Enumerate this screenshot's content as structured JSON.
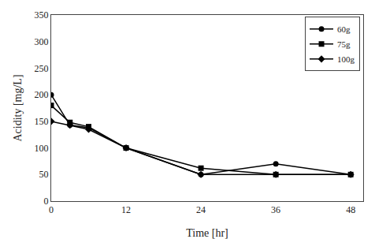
{
  "chart_data": {
    "type": "line",
    "x": [
      0,
      3,
      6,
      12,
      24,
      36,
      48
    ],
    "series": [
      {
        "name": "60g",
        "values": [
          200,
          143,
          138,
          100,
          50,
          70,
          50
        ],
        "marker": "circle",
        "color": "#000000"
      },
      {
        "name": "75g",
        "values": [
          180,
          148,
          140,
          100,
          62,
          50,
          50
        ],
        "marker": "square",
        "color": "#000000"
      },
      {
        "name": "100g",
        "values": [
          150,
          143,
          135,
          100,
          50,
          50,
          50
        ],
        "marker": "diamond",
        "color": "#000000"
      }
    ],
    "xlabel": "Time [hr]",
    "ylabel": "Acidity [mg/L]",
    "xlim": [
      0,
      50
    ],
    "ylim": [
      0,
      350
    ],
    "xticks": [
      0,
      12,
      24,
      36,
      48
    ],
    "yticks": [
      0,
      50,
      100,
      150,
      200,
      250,
      300,
      350
    ],
    "legend": "upper right",
    "grid": false
  }
}
